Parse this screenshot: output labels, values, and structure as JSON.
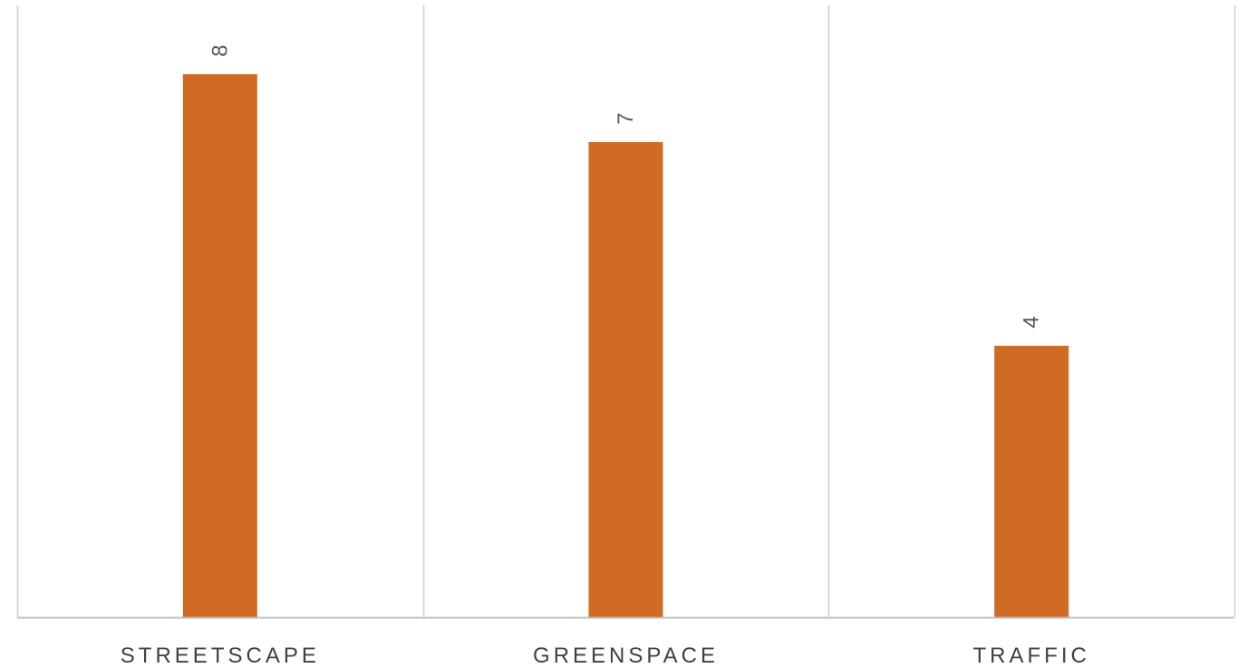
{
  "chart_data": {
    "type": "bar",
    "categories": [
      "STREETSCAPE",
      "GREENSPACE",
      "TRAFFIC"
    ],
    "values": [
      8,
      7,
      4
    ],
    "title": "",
    "xlabel": "",
    "ylabel": "",
    "ylim": [
      0,
      9
    ],
    "grid": "vertical category separators",
    "legend": "none",
    "data_labels": true,
    "bar_color": "#D06B26",
    "grid_color": "#D9D9D9",
    "axis_color": "#BFBFBF"
  }
}
